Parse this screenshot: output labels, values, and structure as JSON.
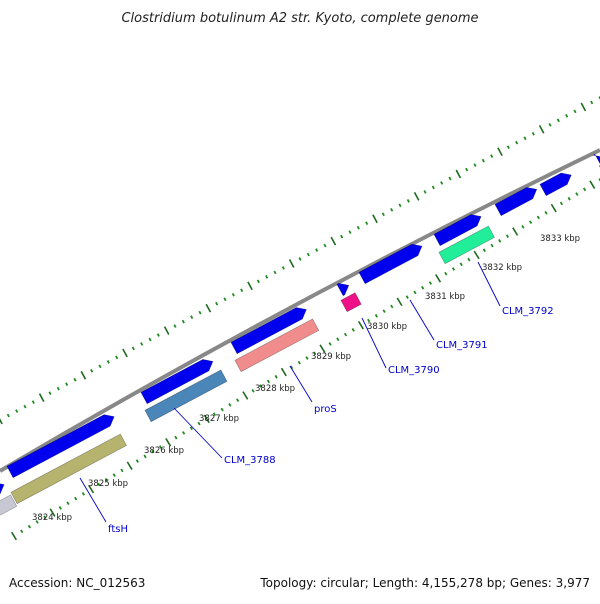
{
  "title": "Clostridium botulinum A2 str. Kyoto, complete genome",
  "footer": {
    "accession": "Accession: NC_012563",
    "summary": "Topology: circular; Length: 4,155,278 bp; Genes: 3,977"
  },
  "colors": {
    "background": "#ffffff",
    "backbone": "#888888",
    "gene_forward": "#0000ee",
    "tick_minor": "#228b22",
    "tick_major": "#1f6b1f",
    "label_text": "#0000cc",
    "leader_line": "#0000cc"
  },
  "ruler": {
    "unit": "kbp",
    "ticks": [
      "3824 kbp",
      "3825 kbp",
      "3826 kbp",
      "3827 kbp",
      "3828 kbp",
      "3829 kbp",
      "3830 kbp",
      "3831 kbp",
      "3832 kbp",
      "3833 kbp"
    ]
  },
  "genes": [
    {
      "label": "ftsH",
      "color": "#b5b36e"
    },
    {
      "label": "CLM_3788",
      "color": "#4a86b8"
    },
    {
      "label": "proS",
      "color": "#f08c8c"
    },
    {
      "label": "CLM_3790",
      "color": "#ee1188"
    },
    {
      "label": "CLM_3791",
      "color": null
    },
    {
      "label": "CLM_3792",
      "color": "#22ee99"
    }
  ]
}
